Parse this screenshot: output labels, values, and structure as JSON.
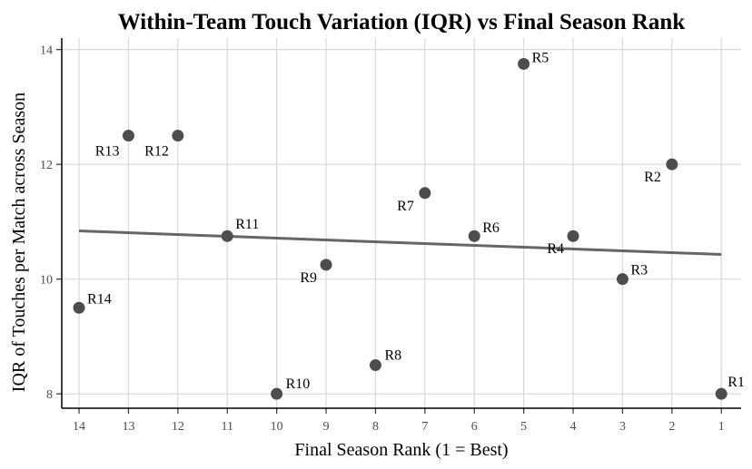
{
  "chart_data": {
    "type": "scatter",
    "title": "Within-Team Touch Variation (IQR) vs Final Season Rank",
    "xlabel": "Final Season Rank (1 = Best)",
    "ylabel": "IQR of Touches per Match across Season",
    "x_reversed": true,
    "xlim": [
      14.35,
      0.6
    ],
    "ylim": [
      7.75,
      14.2
    ],
    "x_ticks": [
      14,
      13,
      12,
      11,
      10,
      9,
      8,
      7,
      6,
      5,
      4,
      3,
      2,
      1
    ],
    "y_ticks": [
      8,
      10,
      12,
      14
    ],
    "grid": true,
    "points": [
      {
        "label": "R1",
        "x": 1,
        "y": 8.0
      },
      {
        "label": "R2",
        "x": 2,
        "y": 12.0
      },
      {
        "label": "R3",
        "x": 3,
        "y": 10.0
      },
      {
        "label": "R4",
        "x": 4,
        "y": 10.75
      },
      {
        "label": "R5",
        "x": 5,
        "y": 13.75
      },
      {
        "label": "R6",
        "x": 6,
        "y": 10.75
      },
      {
        "label": "R7",
        "x": 7,
        "y": 11.5
      },
      {
        "label": "R8",
        "x": 8,
        "y": 8.5
      },
      {
        "label": "R9",
        "x": 9,
        "y": 10.25
      },
      {
        "label": "R10",
        "x": 10,
        "y": 8.0
      },
      {
        "label": "R11",
        "x": 11,
        "y": 10.75
      },
      {
        "label": "R12",
        "x": 12,
        "y": 12.5
      },
      {
        "label": "R13",
        "x": 13,
        "y": 12.5
      },
      {
        "label": "R14",
        "x": 14,
        "y": 9.5
      }
    ],
    "trendline": {
      "x": [
        14,
        1
      ],
      "y": [
        10.84,
        10.43
      ]
    }
  }
}
